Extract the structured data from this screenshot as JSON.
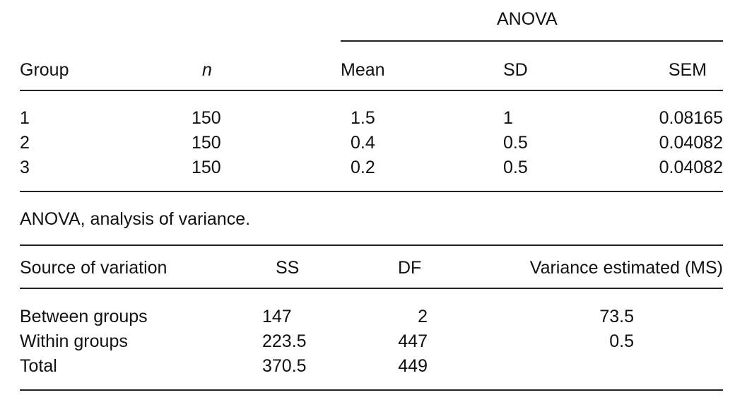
{
  "table1": {
    "super_header": "ANOVA",
    "headers": {
      "group": "Group",
      "n": "n",
      "mean": "Mean",
      "sd": "SD",
      "sem": "SEM"
    },
    "rows": [
      {
        "group": "1",
        "n": "150",
        "mean": "1.5",
        "sd": "1",
        "sem": "0.08165"
      },
      {
        "group": "2",
        "n": "150",
        "mean": "0.4",
        "sd": "0.5",
        "sem": "0.04082"
      },
      {
        "group": "3",
        "n": "150",
        "mean": "0.2",
        "sd": "0.5",
        "sem": "0.04082"
      }
    ]
  },
  "footnote": "ANOVA, analysis of variance.",
  "table2": {
    "headers": {
      "source": "Source of variation",
      "ss": "SS",
      "df": "DF",
      "ms": "Variance estimated (MS)"
    },
    "rows": [
      {
        "source": "Between groups",
        "ss": "147",
        "df": "2",
        "ms": "73.5"
      },
      {
        "source": "Within groups",
        "ss": "223.5",
        "df": "447",
        "ms": "0.5"
      },
      {
        "source": "Total",
        "ss": "370.5",
        "df": "449",
        "ms": ""
      }
    ]
  }
}
